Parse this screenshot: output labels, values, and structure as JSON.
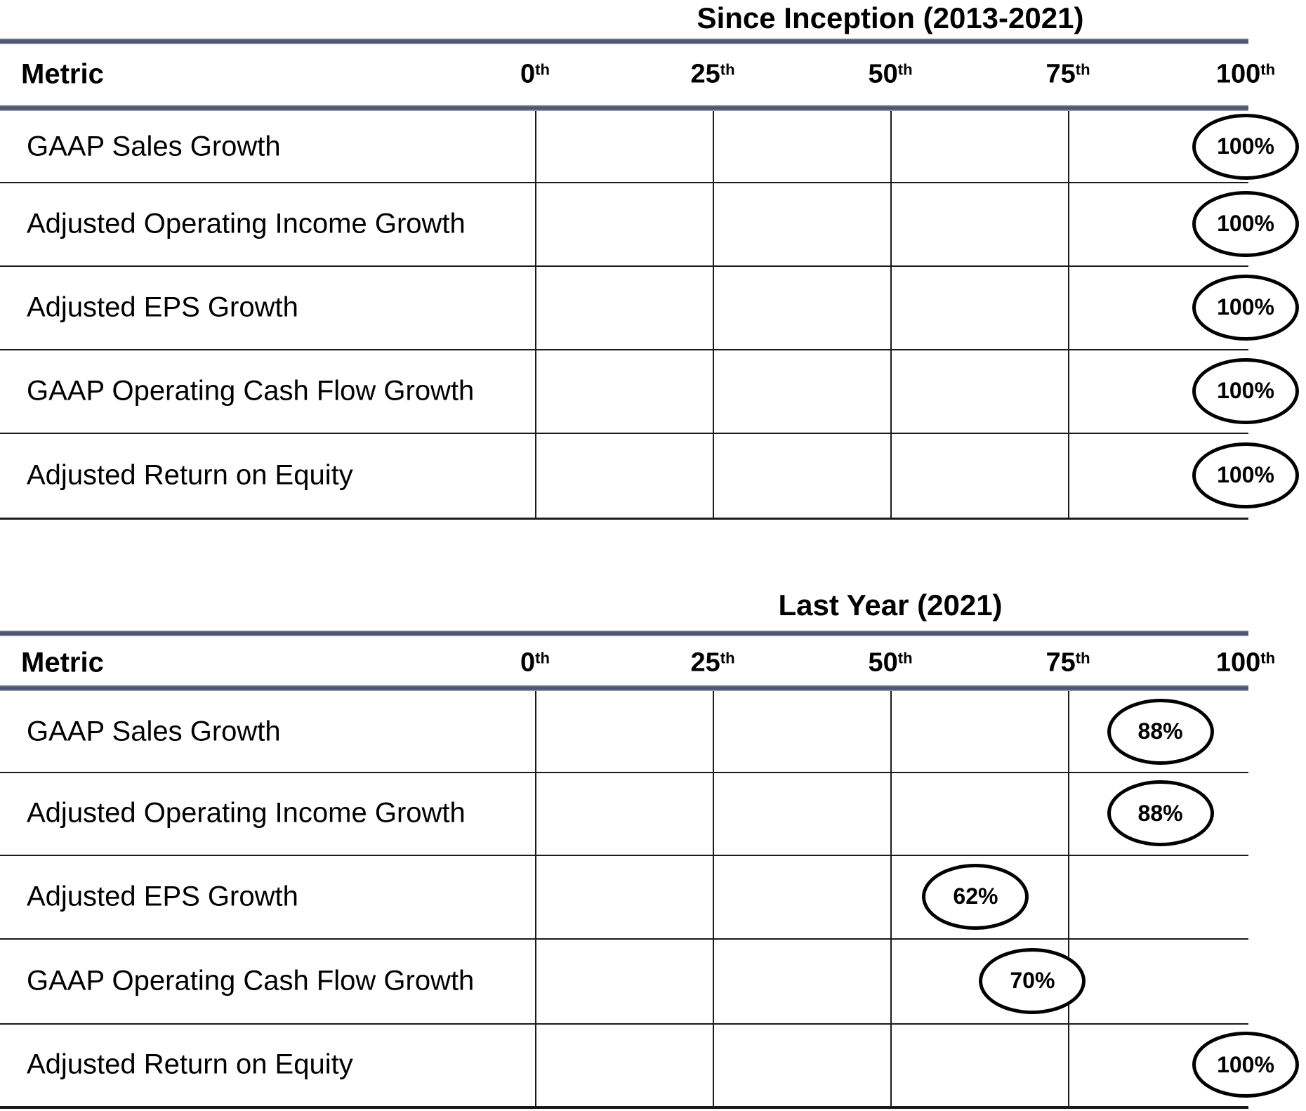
{
  "colors": {
    "background": "#ffffff",
    "text": "#000000",
    "rule": "#4d5572",
    "grid_line": "#1a1a1a",
    "oval_border": "#000000",
    "oval_fill": "#ffffff"
  },
  "chart_data": [
    {
      "type": "table",
      "title": "Since Inception (2013-2021)",
      "metric_header": "Metric",
      "columns": [
        {
          "label": "0th",
          "num": "0",
          "sup": "th"
        },
        {
          "label": "25th",
          "num": "25",
          "sup": "th"
        },
        {
          "label": "50th",
          "num": "50",
          "sup": "th"
        },
        {
          "label": "75th",
          "num": "75",
          "sup": "th"
        },
        {
          "label": "100th",
          "num": "100",
          "sup": "th"
        }
      ],
      "axis": {
        "min": 0,
        "max": 100,
        "unit": "percentile"
      },
      "rows": [
        {
          "metric": "GAAP Sales Growth",
          "percentile": 100,
          "label": "100%"
        },
        {
          "metric": "Adjusted Operating Income Growth",
          "percentile": 100,
          "label": "100%"
        },
        {
          "metric": "Adjusted EPS Growth",
          "percentile": 100,
          "label": "100%"
        },
        {
          "metric": "GAAP Operating Cash Flow Growth",
          "percentile": 100,
          "label": "100%"
        },
        {
          "metric": "Adjusted Return on Equity",
          "percentile": 100,
          "label": "100%"
        }
      ]
    },
    {
      "type": "table",
      "title": "Last Year (2021)",
      "metric_header": "Metric",
      "columns": [
        {
          "label": "0th",
          "num": "0",
          "sup": "th"
        },
        {
          "label": "25th",
          "num": "25",
          "sup": "th"
        },
        {
          "label": "50th",
          "num": "50",
          "sup": "th"
        },
        {
          "label": "75th",
          "num": "75",
          "sup": "th"
        },
        {
          "label": "100th",
          "num": "100",
          "sup": "th"
        }
      ],
      "axis": {
        "min": 0,
        "max": 100,
        "unit": "percentile"
      },
      "rows": [
        {
          "metric": "GAAP Sales Growth",
          "percentile": 88,
          "label": "88%"
        },
        {
          "metric": "Adjusted Operating Income Growth",
          "percentile": 88,
          "label": "88%"
        },
        {
          "metric": "Adjusted EPS Growth",
          "percentile": 62,
          "label": "62%"
        },
        {
          "metric": "GAAP Operating Cash Flow Growth",
          "percentile": 70,
          "label": "70%"
        },
        {
          "metric": "Adjusted Return on Equity",
          "percentile": 100,
          "label": "100%"
        }
      ]
    }
  ]
}
